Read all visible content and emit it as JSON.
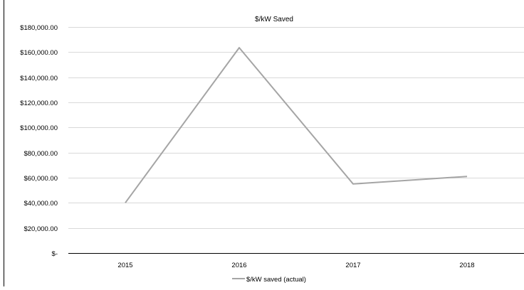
{
  "chart_data": {
    "type": "line",
    "title": "$/kW Saved",
    "categories": [
      "2015",
      "2016",
      "2017",
      "2018"
    ],
    "series": [
      {
        "name": "$/kW saved (actual)",
        "values": [
          40000,
          163500,
          55000,
          61000
        ],
        "color": "#a5a5a5"
      }
    ],
    "ylim": [
      0,
      180000
    ],
    "y_ticks": [
      0,
      20000,
      40000,
      60000,
      80000,
      100000,
      120000,
      140000,
      160000,
      180000
    ],
    "y_tick_labels": [
      "$-",
      "$20,000.00",
      "$40,000.00",
      "$60,000.00",
      "$80,000.00",
      "$100,000.00",
      "$120,000.00",
      "$140,000.00",
      "$160,000.00",
      "$180,000.00"
    ],
    "grid": true,
    "legend_position": "bottom",
    "gridline_color": "#d9d9d9"
  }
}
